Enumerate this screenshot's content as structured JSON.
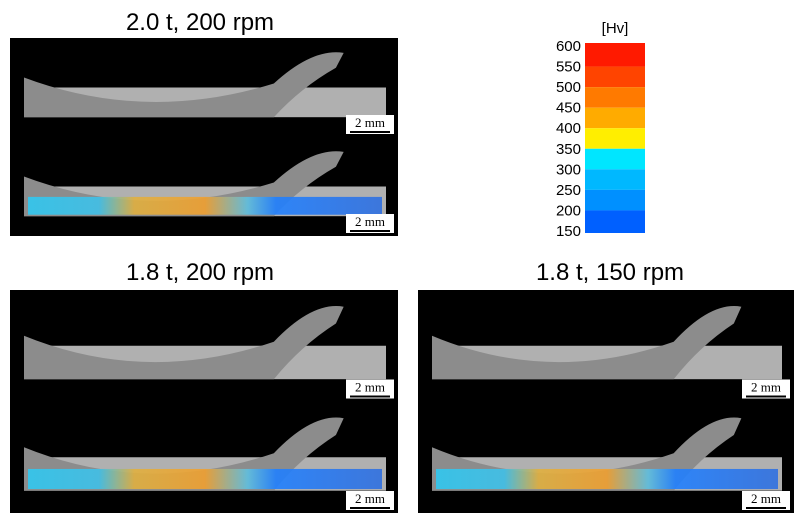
{
  "panels": [
    {
      "title": "2.0 t, 200 rpm",
      "scale_bars": [
        "2 mm",
        "2 mm"
      ]
    },
    {
      "title": "1.8 t, 200 rpm",
      "scale_bars": [
        "2 mm",
        "2 mm"
      ]
    },
    {
      "title": "1.8 t, 150 rpm",
      "scale_bars": [
        "2 mm",
        "2 mm"
      ]
    }
  ],
  "colorbar": {
    "unit": "[Hv]",
    "ticks": [
      600,
      550,
      500,
      450,
      400,
      350,
      300,
      250,
      200,
      150
    ],
    "colors": [
      "#ff1a00",
      "#ff4400",
      "#ff7a00",
      "#ffab00",
      "#ffee00",
      "#00e6ff",
      "#00b8ff",
      "#0090ff",
      "#0060ff"
    ]
  }
}
